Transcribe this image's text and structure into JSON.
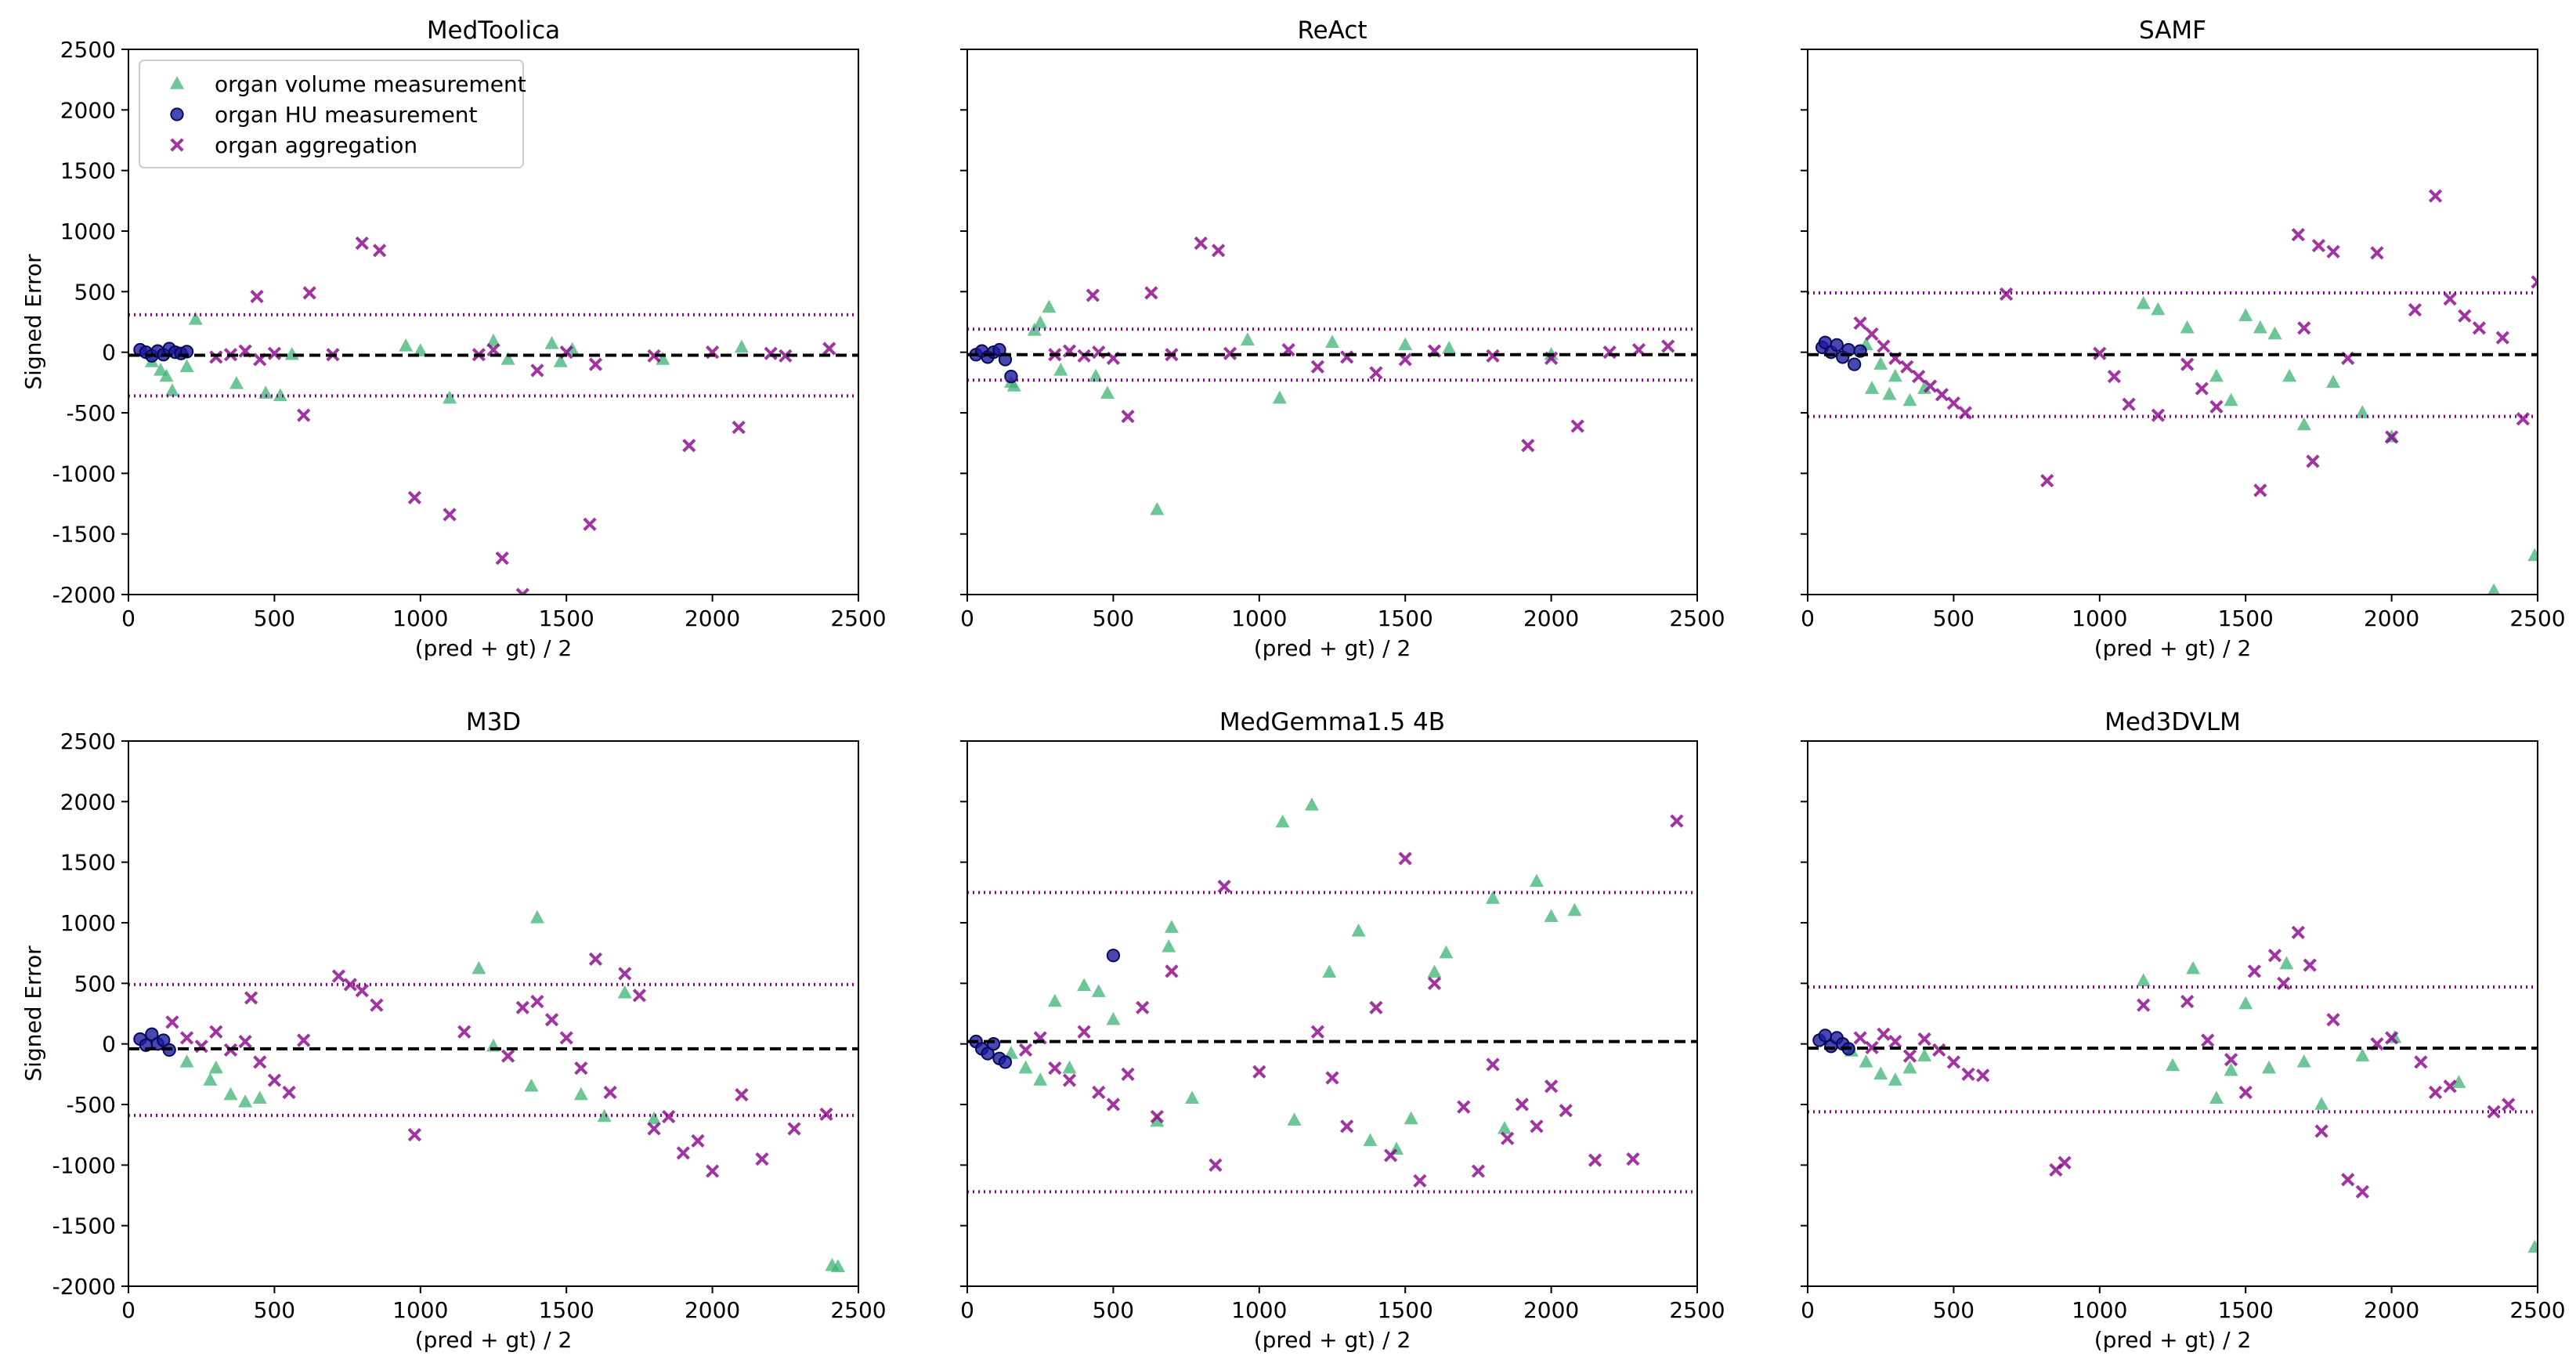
{
  "chart_data": [
    {
      "type": "scatter",
      "title": "MedToolica",
      "xlabel": "(pred + gt) / 2",
      "ylabel": "Signed Error",
      "xlim": [
        0,
        2500
      ],
      "ylim": [
        -2000,
        2500
      ],
      "xticks": [
        0,
        500,
        1000,
        1500,
        2000,
        2500
      ],
      "yticks": [
        -2000,
        -1500,
        -1000,
        -500,
        0,
        500,
        1000,
        1500,
        2000,
        2500
      ],
      "ytick_labels": true,
      "legend": "upper left",
      "bias": -25,
      "bias_color": "#000000",
      "limits": [
        310,
        -360
      ],
      "limits_color": "#8b008b",
      "series": [
        {
          "name": "organ volume measurement",
          "color": "#3cb371",
          "marker": "triangle",
          "x": [
            230,
            80,
            110,
            150,
            200,
            370,
            470,
            520,
            1000,
            1100,
            1250,
            1300,
            1450,
            1480,
            1520,
            1830,
            2100,
            560,
            130,
            950
          ],
          "values": [
            270,
            -80,
            -150,
            -320,
            -120,
            -260,
            -340,
            -360,
            10,
            -380,
            90,
            -60,
            70,
            -80,
            20,
            -60,
            40,
            -20,
            -200,
            50
          ]
        },
        {
          "name": "organ HU measurement",
          "color": "#1a1a9e",
          "marker": "circle",
          "x": [
            40,
            60,
            80,
            100,
            120,
            140,
            160,
            180,
            200
          ],
          "values": [
            20,
            0,
            -30,
            10,
            -20,
            30,
            0,
            -10,
            5
          ]
        },
        {
          "name": "organ aggregation",
          "color": "#8b008b",
          "marker": "x",
          "x": [
            440,
            620,
            800,
            860,
            980,
            1100,
            1280,
            1350,
            1580,
            1920,
            2090,
            300,
            350,
            400,
            450,
            500,
            1200,
            1400,
            1600,
            1800,
            2000,
            2200,
            2400,
            600,
            700,
            1250,
            1500,
            2250
          ],
          "values": [
            460,
            490,
            900,
            840,
            -1200,
            -1340,
            -1700,
            -2000,
            -1420,
            -770,
            -620,
            -40,
            -20,
            10,
            -60,
            -10,
            -20,
            -150,
            -100,
            -30,
            0,
            -10,
            30,
            -520,
            -20,
            20,
            0,
            -30
          ]
        }
      ]
    },
    {
      "type": "scatter",
      "title": "ReAct",
      "xlabel": "(pred + gt) / 2",
      "xlim": [
        0,
        2500
      ],
      "ylim": [
        -2000,
        2500
      ],
      "xticks": [
        0,
        500,
        1000,
        1500,
        2000,
        2500
      ],
      "yticks": [
        -2000,
        -1500,
        -1000,
        -500,
        0,
        500,
        1000,
        1500,
        2000,
        2500
      ],
      "ytick_labels": false,
      "bias": -20,
      "bias_color": "#000000",
      "limits": [
        190,
        -230
      ],
      "limits_color": "#8b008b",
      "series": [
        {
          "color": "#3cb371",
          "marker": "triangle",
          "x": [
            280,
            250,
            230,
            160,
            480,
            650,
            1070,
            960,
            1250,
            1500,
            1650,
            2000,
            320,
            440,
            150
          ],
          "values": [
            370,
            240,
            180,
            -280,
            -340,
            -1300,
            -380,
            100,
            80,
            60,
            30,
            -20,
            -150,
            -200,
            -250
          ]
        },
        {
          "color": "#1a1a9e",
          "marker": "circle",
          "x": [
            30,
            50,
            70,
            90,
            110,
            130,
            150
          ],
          "values": [
            -20,
            10,
            -40,
            0,
            20,
            -60,
            -200
          ]
        },
        {
          "color": "#8b008b",
          "marker": "x",
          "x": [
            430,
            630,
            800,
            860,
            1920,
            2090,
            550,
            300,
            350,
            400,
            450,
            500,
            700,
            900,
            1100,
            1200,
            1300,
            1400,
            1500,
            1600,
            1800,
            2000,
            2200,
            2400,
            2300
          ],
          "values": [
            470,
            490,
            900,
            840,
            -770,
            -610,
            -530,
            -20,
            10,
            -30,
            0,
            -50,
            -20,
            -10,
            20,
            -120,
            -40,
            -170,
            -60,
            10,
            -30,
            -50,
            0,
            50,
            20
          ]
        }
      ]
    },
    {
      "type": "scatter",
      "title": "SAMF",
      "xlabel": "(pred + gt) / 2",
      "xlim": [
        0,
        2500
      ],
      "ylim": [
        -2000,
        2500
      ],
      "xticks": [
        0,
        500,
        1000,
        1500,
        2000,
        2500
      ],
      "yticks": [
        -2000,
        -1500,
        -1000,
        -500,
        0,
        500,
        1000,
        1500,
        2000,
        2500
      ],
      "ytick_labels": false,
      "bias": -20,
      "bias_color": "#000000",
      "limits": [
        490,
        -530
      ],
      "limits_color": "#8b008b",
      "series": [
        {
          "color": "#3cb371",
          "marker": "triangle",
          "x": [
            200,
            250,
            300,
            350,
            400,
            1150,
            1200,
            1300,
            1400,
            1450,
            1500,
            1550,
            1600,
            1650,
            1700,
            1800,
            1900,
            2000,
            2350,
            2490,
            220,
            280
          ],
          "values": [
            60,
            -100,
            -200,
            -400,
            -300,
            400,
            350,
            200,
            -200,
            -400,
            300,
            200,
            150,
            -200,
            -600,
            -250,
            -500,
            -700,
            -1970,
            -1680,
            -300,
            -350
          ]
        },
        {
          "color": "#1a1a9e",
          "marker": "circle",
          "x": [
            50,
            60,
            80,
            100,
            120,
            140,
            160,
            180
          ],
          "values": [
            40,
            80,
            0,
            60,
            -40,
            20,
            -100,
            10
          ]
        },
        {
          "color": "#8b008b",
          "marker": "x",
          "x": [
            180,
            220,
            260,
            300,
            340,
            380,
            420,
            460,
            500,
            540,
            680,
            820,
            1000,
            1050,
            1100,
            1200,
            1300,
            1350,
            1400,
            1550,
            1680,
            1700,
            1750,
            1800,
            1850,
            1950,
            2000,
            2080,
            2150,
            2200,
            2250,
            2300,
            2380,
            2450,
            2500,
            1730
          ],
          "values": [
            240,
            150,
            50,
            -50,
            -120,
            -200,
            -280,
            -350,
            -420,
            -500,
            480,
            -1060,
            -10,
            -200,
            -430,
            -520,
            -100,
            -300,
            -450,
            -1140,
            970,
            200,
            880,
            830,
            -50,
            820,
            -700,
            350,
            1290,
            440,
            300,
            200,
            120,
            -550,
            580,
            -900
          ]
        }
      ]
    },
    {
      "type": "scatter",
      "title": "M3D",
      "xlabel": "(pred + gt) / 2",
      "ylabel": "Signed Error",
      "xlim": [
        0,
        2500
      ],
      "ylim": [
        -2000,
        2500
      ],
      "xticks": [
        0,
        500,
        1000,
        1500,
        2000,
        2500
      ],
      "yticks": [
        -2000,
        -1500,
        -1000,
        -500,
        0,
        500,
        1000,
        1500,
        2000,
        2500
      ],
      "ytick_labels": true,
      "bias": -40,
      "bias_color": "#000000",
      "limits": [
        490,
        -590
      ],
      "limits_color": "#8b008b",
      "series": [
        {
          "color": "#3cb371",
          "marker": "triangle",
          "x": [
            200,
            280,
            350,
            400,
            450,
            1200,
            1250,
            1400,
            1380,
            1550,
            1630,
            1700,
            1800,
            2410,
            2430,
            300
          ],
          "values": [
            -150,
            -300,
            -420,
            -480,
            -450,
            620,
            -20,
            1040,
            -350,
            -420,
            -600,
            420,
            -620,
            -1830,
            -1840,
            -200
          ]
        },
        {
          "color": "#1a1a9e",
          "marker": "circle",
          "x": [
            40,
            60,
            80,
            100,
            120,
            140
          ],
          "values": [
            40,
            -10,
            80,
            0,
            30,
            -50
          ]
        },
        {
          "color": "#8b008b",
          "marker": "x",
          "x": [
            150,
            200,
            250,
            300,
            350,
            400,
            450,
            500,
            550,
            600,
            720,
            760,
            800,
            850,
            980,
            1150,
            1300,
            1350,
            1400,
            1450,
            1500,
            1550,
            1600,
            1650,
            1700,
            1750,
            1800,
            1850,
            1900,
            1950,
            2000,
            2100,
            2170,
            2280,
            2390,
            420
          ],
          "values": [
            180,
            50,
            -20,
            100,
            -50,
            20,
            -150,
            -300,
            -400,
            30,
            560,
            490,
            440,
            320,
            -750,
            100,
            -100,
            300,
            350,
            200,
            50,
            -200,
            700,
            -400,
            580,
            400,
            -700,
            -600,
            -900,
            -800,
            -1050,
            -420,
            -950,
            -700,
            -580,
            380
          ]
        }
      ]
    },
    {
      "type": "scatter",
      "title": "MedGemma1.5 4B",
      "xlabel": "(pred + gt) / 2",
      "xlim": [
        0,
        2500
      ],
      "ylim": [
        -2000,
        2500
      ],
      "xticks": [
        0,
        500,
        1000,
        1500,
        2000,
        2500
      ],
      "yticks": [
        -2000,
        -1500,
        -1000,
        -500,
        0,
        500,
        1000,
        1500,
        2000,
        2500
      ],
      "ytick_labels": false,
      "bias": 20,
      "bias_color": "#000000",
      "limits": [
        1250,
        -1220
      ],
      "limits_color": "#8b008b",
      "series": [
        {
          "color": "#3cb371",
          "marker": "triangle",
          "x": [
            150,
            200,
            250,
            300,
            350,
            400,
            450,
            500,
            650,
            700,
            770,
            1080,
            1180,
            1240,
            1340,
            1380,
            1470,
            1520,
            1600,
            1640,
            1800,
            1840,
            1950,
            2000,
            2080,
            1120,
            690
          ],
          "values": [
            -80,
            -200,
            -300,
            350,
            -200,
            480,
            430,
            200,
            -640,
            960,
            -450,
            1830,
            1970,
            590,
            930,
            -800,
            -870,
            -620,
            590,
            750,
            1200,
            -700,
            1340,
            1050,
            1100,
            -630,
            800
          ]
        },
        {
          "color": "#1a1a9e",
          "marker": "circle",
          "x": [
            30,
            50,
            70,
            90,
            110,
            130,
            500
          ],
          "values": [
            20,
            -40,
            -80,
            0,
            -120,
            -150,
            730
          ]
        },
        {
          "color": "#8b008b",
          "marker": "x",
          "x": [
            200,
            250,
            300,
            350,
            400,
            450,
            500,
            550,
            600,
            650,
            700,
            850,
            880,
            1000,
            1200,
            1300,
            1400,
            1450,
            1500,
            1550,
            1700,
            1750,
            1800,
            1850,
            1900,
            1950,
            2050,
            2150,
            2280,
            2430,
            1250,
            1600,
            2000
          ],
          "values": [
            -50,
            50,
            -200,
            -300,
            100,
            -400,
            -500,
            -250,
            300,
            -600,
            600,
            -1000,
            1300,
            -230,
            100,
            -680,
            300,
            -920,
            1530,
            -1130,
            -520,
            -1050,
            -170,
            -780,
            -500,
            -680,
            -550,
            -960,
            -950,
            1840,
            -280,
            500,
            -350
          ]
        }
      ]
    },
    {
      "type": "scatter",
      "title": "Med3DVLM",
      "xlabel": "(pred + gt) / 2",
      "xlim": [
        0,
        2500
      ],
      "ylim": [
        -2000,
        2500
      ],
      "xticks": [
        0,
        500,
        1000,
        1500,
        2000,
        2500
      ],
      "yticks": [
        -2000,
        -1500,
        -1000,
        -500,
        0,
        500,
        1000,
        1500,
        2000,
        2500
      ],
      "ytick_labels": false,
      "bias": -35,
      "bias_color": "#000000",
      "limits": [
        470,
        -560
      ],
      "limits_color": "#8b008b",
      "series": [
        {
          "color": "#3cb371",
          "marker": "triangle",
          "x": [
            150,
            200,
            250,
            300,
            350,
            400,
            1150,
            1250,
            1320,
            1400,
            1500,
            1580,
            1640,
            1700,
            1760,
            1900,
            2010,
            2230,
            2490,
            1450
          ],
          "values": [
            -60,
            -150,
            -250,
            -300,
            -200,
            -100,
            520,
            -180,
            620,
            -450,
            330,
            -200,
            660,
            -150,
            -500,
            -100,
            50,
            -320,
            -1680,
            -220
          ]
        },
        {
          "color": "#1a1a9e",
          "marker": "circle",
          "x": [
            40,
            60,
            80,
            100,
            120,
            140
          ],
          "values": [
            30,
            70,
            -20,
            50,
            0,
            -40
          ]
        },
        {
          "color": "#8b008b",
          "marker": "x",
          "x": [
            180,
            220,
            260,
            300,
            350,
            400,
            450,
            500,
            550,
            600,
            850,
            880,
            1150,
            1300,
            1370,
            1450,
            1530,
            1600,
            1630,
            1680,
            1720,
            1760,
            1800,
            1850,
            1900,
            1950,
            2000,
            2100,
            2150,
            2200,
            2350,
            2400,
            1500
          ],
          "values": [
            50,
            -30,
            80,
            20,
            -100,
            40,
            -50,
            -150,
            -250,
            -260,
            -1040,
            -980,
            320,
            350,
            30,
            -130,
            600,
            730,
            500,
            920,
            650,
            -720,
            200,
            -1120,
            -1220,
            0,
            50,
            -150,
            -400,
            -350,
            -560,
            -500,
            -400
          ]
        }
      ]
    }
  ]
}
